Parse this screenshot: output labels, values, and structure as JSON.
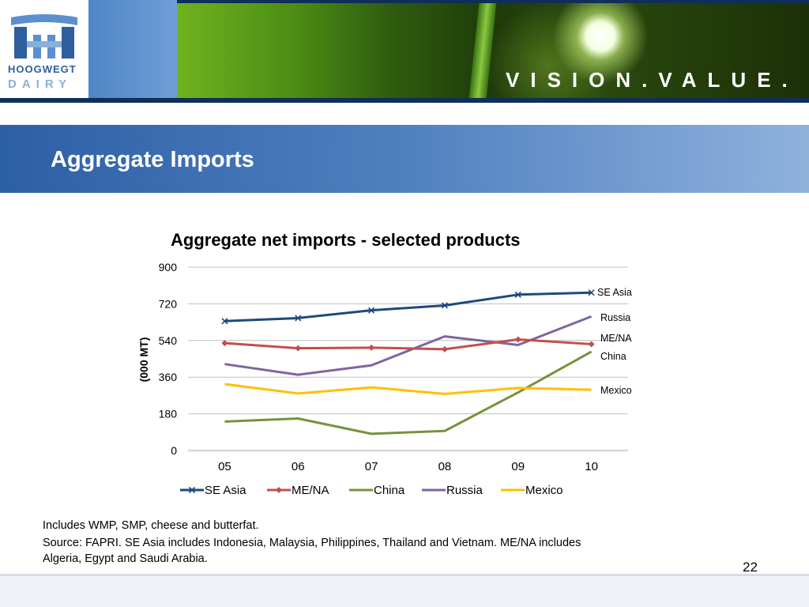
{
  "header": {
    "logo_line1": "HOOGWEGT",
    "logo_line2": "DAIRY",
    "tagline": "VISION.VALUE."
  },
  "slide": {
    "title": "Aggregate Imports",
    "page_number": "22"
  },
  "notes": {
    "line1": "Includes WMP, SMP, cheese and butterfat.",
    "line2": "Source: FAPRI. SE Asia includes Indonesia, Malaysia, Philippines, Thailand and Vietnam. ME/NA includes",
    "line3": "Algeria, Egypt and Saudi Arabia."
  },
  "chart_data": {
    "type": "line",
    "title": "Aggregate net imports - selected products",
    "ylabel": "(000 MT)",
    "xlabel": "",
    "categories": [
      "05",
      "06",
      "07",
      "08",
      "09",
      "10"
    ],
    "ylim": [
      0,
      900
    ],
    "yticks": [
      0,
      180,
      360,
      540,
      720,
      900
    ],
    "grid": true,
    "legend_position": "bottom",
    "series": [
      {
        "name": "SE Asia",
        "color": "#1f497d",
        "marker": "x",
        "values": [
          635,
          650,
          688,
          712,
          765,
          775
        ]
      },
      {
        "name": "ME/NA",
        "color": "#c0504d",
        "marker": "diamond",
        "values": [
          527,
          502,
          505,
          497,
          545,
          522
        ]
      },
      {
        "name": "China",
        "color": "#77933c",
        "marker": "none",
        "values": [
          142,
          157,
          82,
          96,
          285,
          485
        ]
      },
      {
        "name": "Russia",
        "color": "#8064a2",
        "marker": "none",
        "values": [
          424,
          372,
          418,
          560,
          518,
          658
        ]
      },
      {
        "name": "Mexico",
        "color": "#ffc000",
        "marker": "none",
        "values": [
          326,
          280,
          310,
          278,
          307,
          298
        ]
      }
    ],
    "end_labels": [
      "SE Asia",
      "Russia",
      "ME/NA",
      "China",
      "Mexico"
    ]
  }
}
